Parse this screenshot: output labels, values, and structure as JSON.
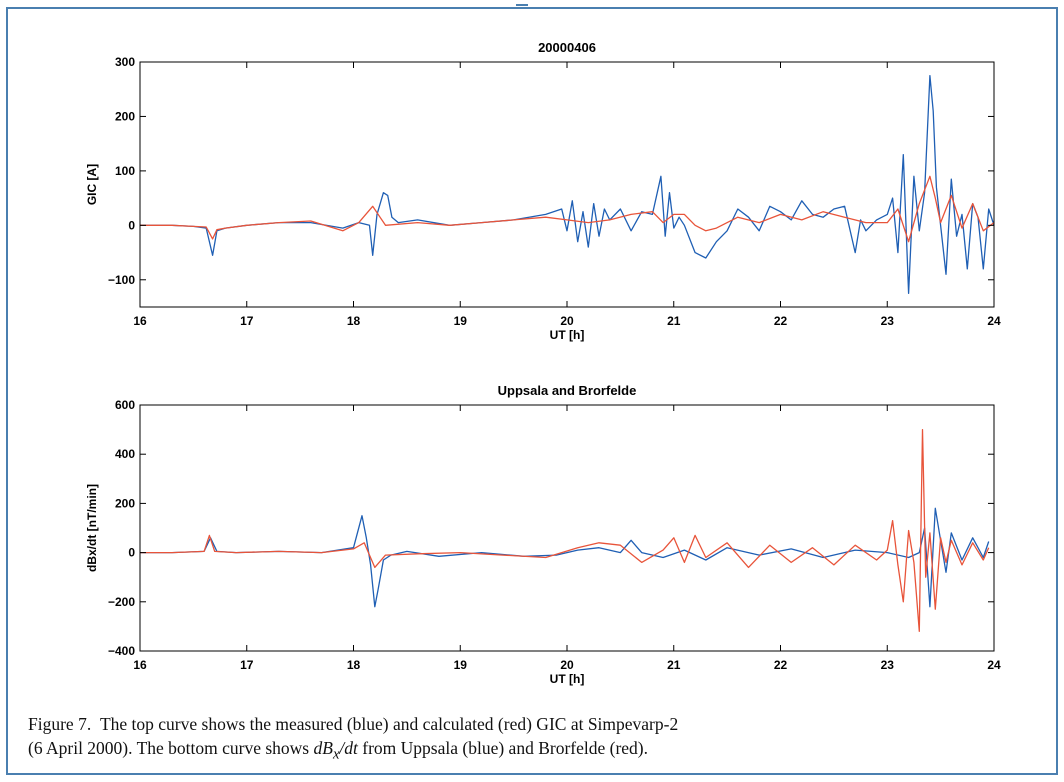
{
  "chart_data": [
    {
      "type": "line",
      "title": "20000406",
      "xlabel": "UT [h]",
      "ylabel": "GIC [A]",
      "xlim": [
        16,
        24
      ],
      "ylim": [
        -150,
        300
      ],
      "xticks": [
        16,
        17,
        18,
        19,
        20,
        21,
        22,
        23,
        24
      ],
      "yticks": [
        -100,
        0,
        100,
        200,
        300
      ],
      "grid": false,
      "series": [
        {
          "color": "#1f5fb4",
          "x": [
            16.0,
            16.3,
            16.5,
            16.62,
            16.68,
            16.72,
            16.8,
            17.0,
            17.3,
            17.6,
            17.9,
            18.05,
            18.15,
            18.18,
            18.22,
            18.28,
            18.32,
            18.36,
            18.42,
            18.6,
            18.9,
            19.2,
            19.5,
            19.8,
            19.95,
            20.0,
            20.05,
            20.1,
            20.15,
            20.2,
            20.25,
            20.3,
            20.35,
            20.4,
            20.5,
            20.6,
            20.7,
            20.8,
            20.88,
            20.92,
            20.96,
            21.0,
            21.05,
            21.1,
            21.2,
            21.3,
            21.4,
            21.5,
            21.6,
            21.7,
            21.8,
            21.9,
            22.0,
            22.1,
            22.2,
            22.3,
            22.4,
            22.5,
            22.6,
            22.7,
            22.75,
            22.8,
            22.9,
            23.0,
            23.05,
            23.1,
            23.15,
            23.2,
            23.25,
            23.3,
            23.35,
            23.4,
            23.43,
            23.46,
            23.5,
            23.55,
            23.6,
            23.65,
            23.7,
            23.75,
            23.8,
            23.85,
            23.9,
            23.95,
            24.0
          ],
          "y": [
            0,
            0,
            -2,
            -5,
            -55,
            -10,
            -5,
            0,
            5,
            5,
            -5,
            5,
            0,
            -55,
            20,
            60,
            55,
            15,
            5,
            10,
            0,
            5,
            10,
            20,
            30,
            -10,
            45,
            -30,
            25,
            -40,
            40,
            -20,
            30,
            10,
            30,
            -10,
            25,
            20,
            90,
            -20,
            60,
            -5,
            15,
            0,
            -50,
            -60,
            -30,
            -10,
            30,
            15,
            -10,
            35,
            25,
            10,
            45,
            20,
            15,
            30,
            35,
            -50,
            10,
            -10,
            10,
            20,
            50,
            -50,
            130,
            -125,
            90,
            -10,
            60,
            275,
            210,
            70,
            0,
            -90,
            85,
            -20,
            20,
            -80,
            40,
            15,
            -80,
            30,
            0
          ]
        },
        {
          "color": "#e8543a",
          "x": [
            16.0,
            16.3,
            16.5,
            16.62,
            16.68,
            16.72,
            16.8,
            17.0,
            17.3,
            17.6,
            17.9,
            18.05,
            18.18,
            18.3,
            18.6,
            18.9,
            19.2,
            19.5,
            19.8,
            20.0,
            20.2,
            20.4,
            20.6,
            20.8,
            20.9,
            21.0,
            21.1,
            21.2,
            21.3,
            21.4,
            21.6,
            21.8,
            22.0,
            22.2,
            22.4,
            22.6,
            22.8,
            23.0,
            23.1,
            23.2,
            23.3,
            23.4,
            23.45,
            23.5,
            23.6,
            23.7,
            23.8,
            23.9,
            24.0
          ],
          "y": [
            0,
            0,
            -2,
            -3,
            -25,
            -8,
            -5,
            0,
            5,
            8,
            -10,
            5,
            35,
            0,
            5,
            0,
            5,
            10,
            15,
            10,
            5,
            10,
            20,
            25,
            5,
            20,
            20,
            0,
            -10,
            -5,
            15,
            5,
            20,
            10,
            25,
            15,
            5,
            5,
            30,
            -30,
            40,
            90,
            50,
            5,
            55,
            -5,
            40,
            -10,
            5
          ]
        }
      ]
    },
    {
      "type": "line",
      "title": "Uppsala and Brorfelde",
      "xlabel": "UT [h]",
      "ylabel": "dBx/dt [nT/min]",
      "xlim": [
        16,
        24
      ],
      "ylim": [
        -400,
        600
      ],
      "xticks": [
        16,
        17,
        18,
        19,
        20,
        21,
        22,
        23,
        24
      ],
      "yticks": [
        -400,
        -200,
        0,
        200,
        400,
        600
      ],
      "grid": false,
      "series": [
        {
          "color": "#1f5fb4",
          "x": [
            16.0,
            16.3,
            16.6,
            16.66,
            16.72,
            16.9,
            17.3,
            17.7,
            18.0,
            18.08,
            18.12,
            18.16,
            18.2,
            18.23,
            18.28,
            18.35,
            18.5,
            18.8,
            19.2,
            19.6,
            19.9,
            20.1,
            20.3,
            20.5,
            20.6,
            20.7,
            20.9,
            21.1,
            21.3,
            21.5,
            21.8,
            22.1,
            22.4,
            22.7,
            23.0,
            23.2,
            23.3,
            23.35,
            23.4,
            23.45,
            23.5,
            23.55,
            23.6,
            23.7,
            23.8,
            23.9,
            23.95
          ],
          "y": [
            0,
            0,
            5,
            60,
            5,
            0,
            5,
            0,
            20,
            150,
            60,
            -50,
            -220,
            -150,
            -30,
            -10,
            5,
            -15,
            0,
            -15,
            -10,
            10,
            20,
            0,
            50,
            0,
            -20,
            10,
            -30,
            20,
            -10,
            15,
            -20,
            10,
            0,
            -20,
            0,
            100,
            -220,
            180,
            50,
            -80,
            80,
            -30,
            60,
            -20,
            45
          ]
        },
        {
          "color": "#e8543a",
          "x": [
            16.0,
            16.3,
            16.6,
            16.65,
            16.7,
            16.9,
            17.3,
            17.7,
            18.0,
            18.1,
            18.15,
            18.2,
            18.3,
            18.6,
            19.0,
            19.4,
            19.8,
            20.1,
            20.3,
            20.5,
            20.7,
            20.9,
            21.0,
            21.1,
            21.2,
            21.3,
            21.5,
            21.7,
            21.9,
            22.1,
            22.3,
            22.5,
            22.7,
            22.9,
            23.0,
            23.05,
            23.1,
            23.15,
            23.2,
            23.25,
            23.3,
            23.33,
            23.36,
            23.4,
            23.45,
            23.5,
            23.55,
            23.6,
            23.7,
            23.8,
            23.9,
            23.95
          ],
          "y": [
            0,
            0,
            5,
            70,
            5,
            0,
            5,
            0,
            15,
            40,
            -10,
            -60,
            -10,
            -5,
            0,
            -10,
            -20,
            20,
            40,
            30,
            -40,
            10,
            60,
            -40,
            70,
            -20,
            40,
            -60,
            30,
            -40,
            20,
            -50,
            30,
            -30,
            10,
            130,
            -50,
            -200,
            90,
            -40,
            -320,
            500,
            -100,
            80,
            -230,
            60,
            -40,
            50,
            -50,
            40,
            -30,
            20
          ]
        }
      ]
    }
  ],
  "caption": {
    "figure_label": "Figure 7.",
    "line1_a": "The top curve shows the measured (blue) and calculated (red) GIC at Simpevarp-2",
    "line2_a": "(6 April 2000). The bottom curve shows ",
    "math_d": "dB",
    "math_sub": "x",
    "math_dt": "/dt",
    "line2_b": " from Uppsala (blue) and Brorfelde (red)."
  }
}
